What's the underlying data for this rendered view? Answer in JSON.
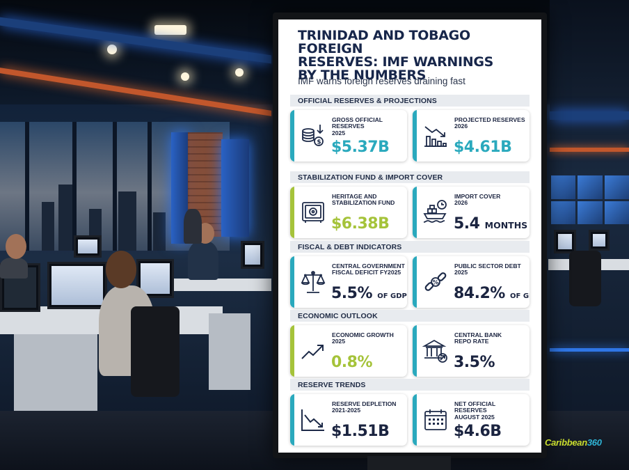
{
  "infographic": {
    "title": "TRINIDAD AND TOBAGO FOREIGN\nRESERVES: IMF WARNINGS\nBY THE NUMBERS",
    "subtitle": "IMF warns foreign reserves draining fast",
    "sections": [
      {
        "heading": "OFFICIAL RESERVES & PROJECTIONS",
        "cards": [
          {
            "label": "GROSS OFFICIAL\nRESERVES\n2025",
            "value": "$5.37B",
            "unit": "",
            "icon": "coins-down-icon",
            "accent": "teal",
            "value_color": "teal"
          },
          {
            "label": "PROJECTED RESERVES\n2026",
            "value": "$4.61B",
            "unit": "",
            "icon": "declining-bars-icon",
            "accent": "teal",
            "value_color": "teal"
          }
        ]
      },
      {
        "heading": "STABILIZATION FUND & IMPORT COVER",
        "cards": [
          {
            "label": "HERITAGE AND\nSTABILIZATION FUND",
            "value": "$6.38B",
            "unit": "",
            "icon": "safe-icon",
            "accent": "lime",
            "value_color": "lime"
          },
          {
            "label": "IMPORT COVER\n2026",
            "value": "5.4",
            "unit": "MONTHS",
            "icon": "cargo-ship-clock-icon",
            "accent": "teal",
            "value_color": "dark"
          }
        ]
      },
      {
        "heading": "FISCAL & DEBT INDICATORS",
        "cards": [
          {
            "label": "CENTRAL GOVERNMENT\nFISCAL DEFICIT FY2025",
            "value": "5.5%",
            "unit": "OF GDP",
            "icon": "balance-scale-icon",
            "accent": "teal",
            "value_color": "dark"
          },
          {
            "label": "PUBLIC SECTOR DEBT\n2025",
            "value": "84.2%",
            "unit": "OF GDP",
            "icon": "chain-percent-icon",
            "accent": "teal",
            "value_color": "dark"
          }
        ]
      },
      {
        "heading": "ECONOMIC OUTLOOK",
        "cards": [
          {
            "label": "ECONOMIC GROWTH\n2025",
            "value": "0.8%",
            "unit": "",
            "icon": "trend-up-icon",
            "accent": "lime",
            "value_color": "lime"
          },
          {
            "label": "CENTRAL BANK\nREPO RATE",
            "value": "3.5%",
            "unit": "",
            "icon": "bank-icon",
            "accent": "teal",
            "value_color": "dark"
          }
        ]
      },
      {
        "heading": "RESERVE TRENDS",
        "cards": [
          {
            "label": "RESERVE DEPLETION\n2021-2025",
            "value": "$1.51B",
            "unit": "",
            "icon": "trend-down-icon",
            "accent": "teal",
            "value_color": "dark"
          },
          {
            "label": "NET OFFICIAL RESERVES\nAUGUST 2025",
            "value": "$4.6B",
            "unit": "",
            "icon": "calendar-icon",
            "accent": "teal",
            "value_color": "dark"
          }
        ]
      }
    ]
  },
  "watermark": {
    "part1": "Caribbean",
    "part2": "360"
  },
  "colors": {
    "teal": "#2aa9bd",
    "lime": "#a5c33a",
    "navy": "#17264a",
    "section_bg": "#e8ebef"
  }
}
